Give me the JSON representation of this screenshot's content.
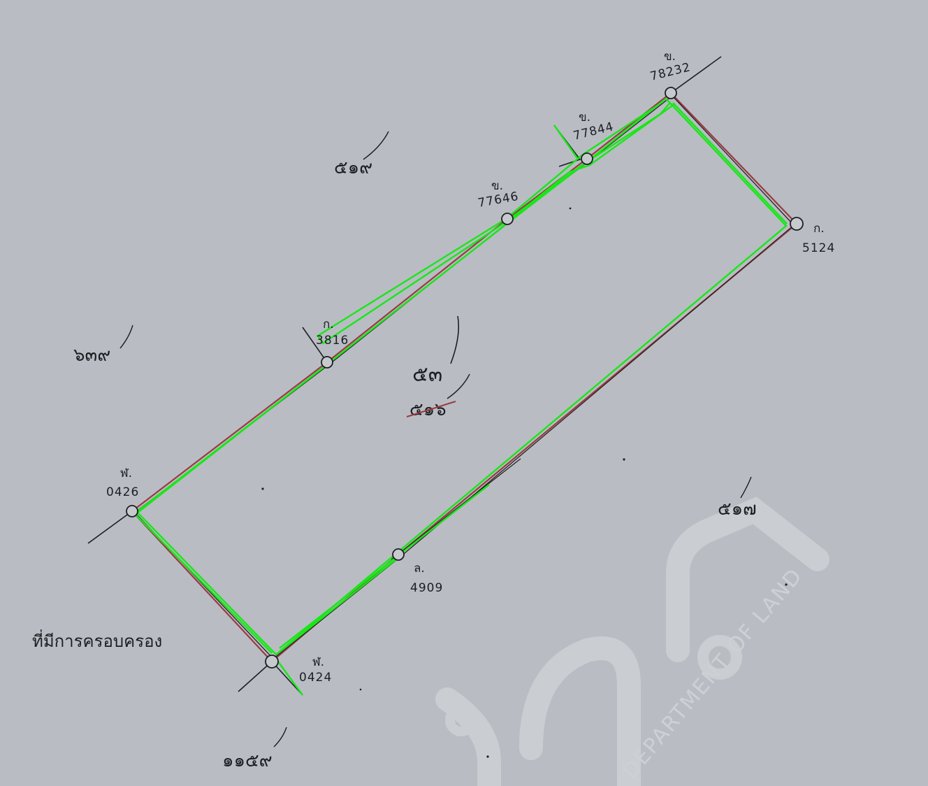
{
  "map": {
    "markers": [
      {
        "id": "m1",
        "prefix": "ข.",
        "code": "78232"
      },
      {
        "id": "m2",
        "prefix": "ข.",
        "code": "77844"
      },
      {
        "id": "m3",
        "prefix": "ข.",
        "code": "77646"
      },
      {
        "id": "m4",
        "prefix": "ก.",
        "code": "3816"
      },
      {
        "id": "m5",
        "prefix": "ก.",
        "code": "5124"
      },
      {
        "id": "m6",
        "prefix": "ฬ.",
        "code": "0426"
      },
      {
        "id": "m7",
        "prefix": "ล.",
        "code": "4909"
      },
      {
        "id": "m8",
        "prefix": "ฬ.",
        "code": "0424"
      }
    ],
    "parcels": {
      "north": "๕๑๙",
      "west": "๖๓๙",
      "center_top": "๕๓",
      "center_bottom": "๕๑๖",
      "east": "๕๑๗",
      "south": "๑๑๕๙"
    },
    "note": "ที่มีการครอบครอง",
    "watermark": {
      "glyph": "กรมที่ดิน",
      "text": "DEPARTMENT OF LAND"
    },
    "colors": {
      "paper": "#b9bdc3",
      "ink": "#1c1e22",
      "boundary_red": "#9a3a44",
      "overlay_green": "#19e619",
      "watermark": "#d4d7da"
    }
  }
}
